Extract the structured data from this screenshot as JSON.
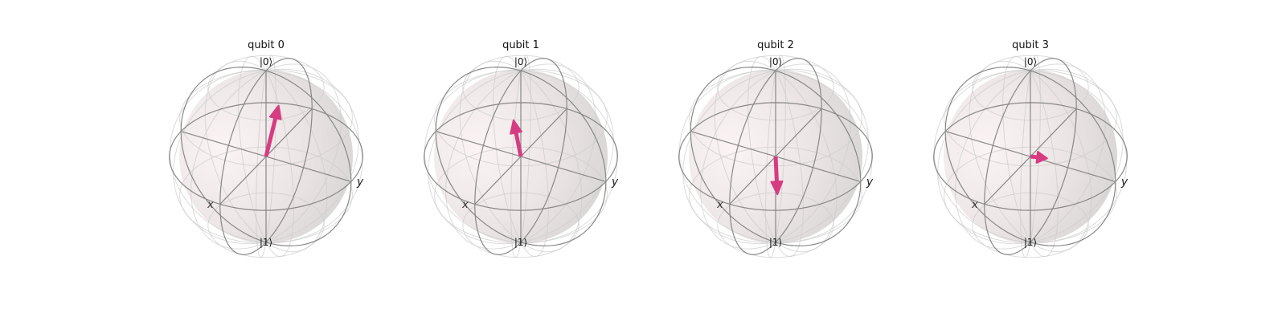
{
  "figure": {
    "vector_color": "#d63c82",
    "sphere_fill": "#f3e8e8",
    "frame_color": "#888888",
    "wire_color": "#cccccc"
  },
  "qubits": [
    {
      "title": "qubit 0",
      "ket_top": "|0⟩",
      "ket_bottom": "|1⟩",
      "axis_x": "x",
      "axis_y": "y",
      "vector": {
        "x": -0.05,
        "y": 0.12,
        "z": 0.6
      }
    },
    {
      "title": "qubit 1",
      "ket_top": "|0⟩",
      "ket_bottom": "|1⟩",
      "axis_x": "x",
      "axis_y": "y",
      "vector": {
        "x": 0.03,
        "y": -0.07,
        "z": 0.42
      }
    },
    {
      "title": "qubit 2",
      "ket_top": "|0⟩",
      "ket_bottom": "|1⟩",
      "axis_x": "x",
      "axis_y": "y",
      "vector": {
        "x": -0.02,
        "y": 0.01,
        "z": -0.45
      }
    },
    {
      "title": "qubit 3",
      "ket_top": "|0⟩",
      "ket_bottom": "|1⟩",
      "axis_x": "x",
      "axis_y": "y",
      "vector": {
        "x": -0.05,
        "y": 0.17,
        "z": 0.0
      }
    }
  ]
}
